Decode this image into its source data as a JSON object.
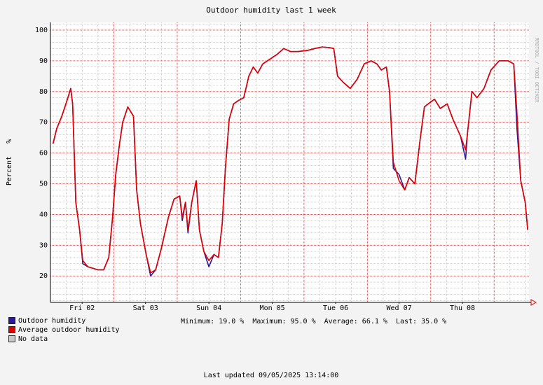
{
  "chart_data": {
    "type": "line",
    "title": "Outdoor humidity last 1 week",
    "y_label": "Percent   %",
    "watermark": "RRDTOOL / TOBI OETIKER",
    "x": [
      2.04,
      2.1,
      2.18,
      2.26,
      2.32,
      2.35,
      2.4,
      2.46,
      2.51,
      2.59,
      2.75,
      2.84,
      2.92,
      2.98,
      3.03,
      3.09,
      3.14,
      3.22,
      3.31,
      3.36,
      3.42,
      3.51,
      3.58,
      3.66,
      3.75,
      3.86,
      3.95,
      4.04,
      4.08,
      4.13,
      4.17,
      4.23,
      4.3,
      4.35,
      4.42,
      4.5,
      4.58,
      4.65,
      4.71,
      4.76,
      4.82,
      4.89,
      4.96,
      5.05,
      5.13,
      5.2,
      5.27,
      5.35,
      5.46,
      5.57,
      5.68,
      5.79,
      5.9,
      6.06,
      6.17,
      6.29,
      6.4,
      6.47,
      6.53,
      6.62,
      6.73,
      6.84,
      6.95,
      7.06,
      7.15,
      7.22,
      7.3,
      7.35,
      7.41,
      7.5,
      7.59,
      7.66,
      7.75,
      7.83,
      7.9,
      7.96,
      8.06,
      8.15,
      8.26,
      8.35,
      8.47,
      8.55,
      8.58,
      8.65,
      8.73,
      8.84,
      8.95,
      9.08,
      9.22,
      9.31,
      9.36,
      9.42,
      9.49,
      9.53
    ],
    "series": [
      {
        "name": "Outdoor humidity",
        "color": "#2a1a9a",
        "values": [
          63,
          68,
          72,
          77,
          81,
          76,
          44,
          35,
          24,
          23,
          22,
          22,
          26,
          39,
          53,
          63,
          70,
          75,
          72,
          48,
          37,
          27,
          20,
          22,
          29,
          39,
          45,
          46,
          38,
          44,
          34,
          44,
          51,
          35,
          28,
          23,
          27,
          26,
          37,
          55,
          71,
          76,
          77,
          78,
          85,
          88,
          86,
          89,
          90.5,
          92,
          94,
          93,
          93,
          93.4,
          94,
          94.5,
          94.3,
          94,
          85,
          83,
          81,
          84,
          89,
          90,
          89,
          87,
          88,
          80,
          55,
          53,
          48,
          52,
          50,
          64,
          75,
          76,
          77.5,
          74.5,
          76,
          71,
          65.5,
          58,
          66.5,
          80,
          78,
          81,
          87,
          90,
          90,
          89,
          68,
          51,
          44,
          35
        ]
      },
      {
        "name": "Average outdoor humidity",
        "color": "#e00000",
        "values": [
          63,
          68,
          72,
          77,
          81,
          76,
          44,
          35,
          25,
          23,
          22,
          22,
          26,
          39,
          53,
          63,
          70,
          75,
          72,
          48,
          37,
          27,
          21,
          22,
          29,
          39,
          45,
          46,
          39,
          44,
          35,
          44,
          51,
          35,
          28,
          25,
          27,
          26,
          37,
          55,
          71,
          76,
          77,
          78,
          85,
          88,
          86,
          89,
          90.5,
          92,
          94,
          93,
          93,
          93.4,
          94,
          94.5,
          94.3,
          94,
          85,
          83,
          81,
          84,
          89,
          90,
          89,
          87,
          88,
          80,
          57,
          51,
          48,
          52,
          50,
          64,
          75,
          76,
          77.5,
          74.5,
          76,
          71,
          65.5,
          61,
          66.5,
          80,
          78,
          81,
          87,
          90,
          90,
          89,
          73,
          51,
          44,
          35
        ]
      }
    ],
    "no_data": {
      "name": "No data",
      "color": "#c8c8c8"
    },
    "xlim": [
      2.0,
      9.55
    ],
    "xticks": [
      {
        "value": 2.5,
        "label": "Fri 02"
      },
      {
        "value": 3.5,
        "label": "Sat 03"
      },
      {
        "value": 4.5,
        "label": "Sun 04"
      },
      {
        "value": 5.5,
        "label": "Mon 05"
      },
      {
        "value": 6.5,
        "label": "Tue 06"
      },
      {
        "value": 7.5,
        "label": "Wed 07"
      },
      {
        "value": 8.5,
        "label": "Thu 08"
      }
    ],
    "x_major_grid": [
      3,
      4,
      5,
      6,
      7,
      8,
      9
    ],
    "x_minor_step": 0.25,
    "ylim": [
      11.4,
      102.5
    ],
    "yticks": [
      20,
      30,
      40,
      50,
      60,
      70,
      80,
      90,
      100
    ],
    "y_minor_step": 2,
    "grid": true,
    "stats": [
      "Minimum: 19.0 %",
      "Maximum: 95.0 %",
      "Average: 66.1 %",
      "Last: 35.0 %"
    ],
    "footer": "Last updated 09/05/2025 13:14:00"
  }
}
